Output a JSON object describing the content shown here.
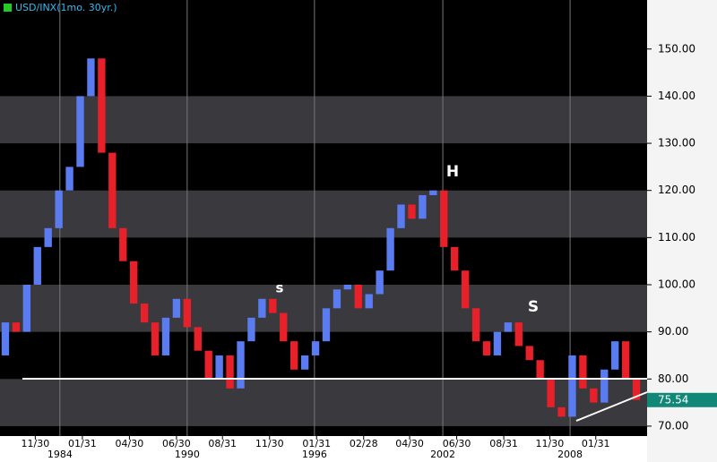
{
  "chart_data": {
    "type": "candlestick",
    "title": "USD/INX(1mo. 30yr.)",
    "open": [
      85,
      92,
      90,
      100,
      108,
      112,
      120,
      125,
      140,
      148,
      128,
      112,
      105,
      96,
      92,
      85,
      93,
      97,
      91,
      86,
      80,
      85,
      78,
      88,
      93,
      97,
      94,
      88,
      82,
      85,
      88,
      95,
      99,
      100,
      95,
      98,
      103,
      112,
      117,
      114,
      119,
      120,
      108,
      103,
      95,
      88,
      85,
      90,
      92,
      87,
      84,
      80,
      74,
      72,
      85,
      78,
      75,
      82,
      88,
      80
    ],
    "close": [
      92,
      90,
      100,
      108,
      112,
      120,
      125,
      140,
      148,
      128,
      112,
      105,
      96,
      92,
      85,
      93,
      97,
      91,
      86,
      80,
      85,
      78,
      88,
      93,
      97,
      94,
      88,
      82,
      85,
      88,
      95,
      99,
      100,
      95,
      98,
      103,
      112,
      117,
      114,
      119,
      120,
      108,
      103,
      95,
      88,
      85,
      90,
      92,
      87,
      84,
      80,
      74,
      72,
      85,
      78,
      75,
      82,
      88,
      80,
      75.54
    ],
    "up_color": "#5b7cf0",
    "down_color": "#e8202a",
    "xlim": [
      0,
      60.5
    ],
    "xticks": [
      {
        "value": 3.3,
        "label": "11/30"
      },
      {
        "value": 7.7,
        "label": "01/31"
      },
      {
        "value": 12.1,
        "label": "04/30"
      },
      {
        "value": 16.5,
        "label": "06/30"
      },
      {
        "value": 20.8,
        "label": "08/31"
      },
      {
        "value": 25.2,
        "label": "11/30"
      },
      {
        "value": 29.6,
        "label": "01/31"
      },
      {
        "value": 34,
        "label": "02/28"
      },
      {
        "value": 38.3,
        "label": "04/30"
      },
      {
        "value": 42.7,
        "label": "06/30"
      },
      {
        "value": 47.1,
        "label": "08/31"
      },
      {
        "value": 51.4,
        "label": "11/30"
      },
      {
        "value": 55.7,
        "label": "01/31"
      }
    ],
    "year_ticks": [
      {
        "value": 5.6,
        "label": "1984"
      },
      {
        "value": 17.5,
        "label": "1990"
      },
      {
        "value": 29.4,
        "label": "1996"
      },
      {
        "value": 41.4,
        "label": "2002"
      },
      {
        "value": 53.3,
        "label": "2008"
      }
    ],
    "ylim": [
      67.9,
      160.4
    ],
    "yticks": [
      {
        "value": 70,
        "label": "70.00"
      },
      {
        "value": 80,
        "label": "80.00"
      },
      {
        "value": 90,
        "label": "90.00"
      },
      {
        "value": 100,
        "label": "100.00"
      },
      {
        "value": 110,
        "label": "110.00"
      },
      {
        "value": 120,
        "label": "120.00"
      },
      {
        "value": 130,
        "label": "130.00"
      },
      {
        "value": 140,
        "label": "140.00"
      },
      {
        "value": 150,
        "label": "150.00"
      }
    ],
    "annotations": [
      "s",
      "H",
      "S"
    ]
  }
}
